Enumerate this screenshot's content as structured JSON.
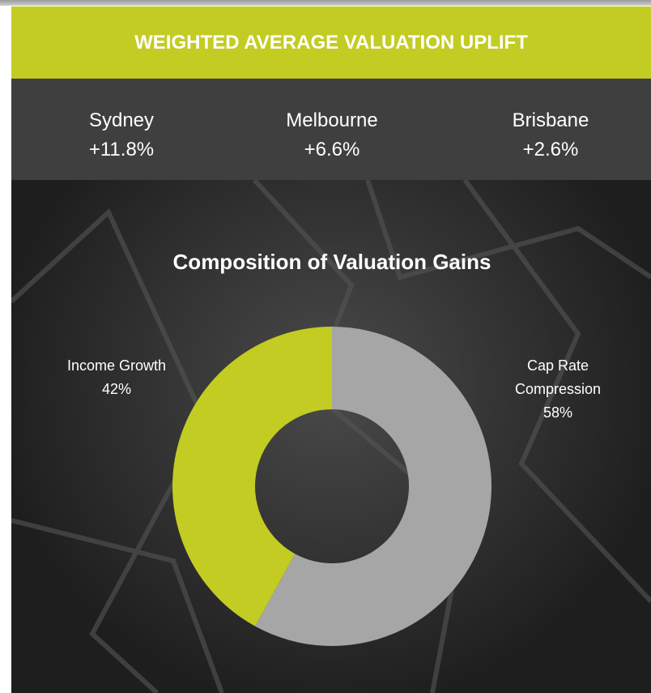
{
  "header": {
    "title": "WEIGHTED AVERAGE VALUATION UPLIFT"
  },
  "cities": [
    {
      "name": "Sydney",
      "value": "+11.8%"
    },
    {
      "name": "Melbourne",
      "value": "+6.6%"
    },
    {
      "name": "Brisbane",
      "value": "+2.6%"
    }
  ],
  "chart_data": {
    "type": "pie",
    "donut": true,
    "title": "Composition of Valuation Gains",
    "categories": [
      "Income Growth",
      "Cap Rate Compression"
    ],
    "values": [
      42,
      58
    ],
    "value_labels": [
      "42%",
      "58%"
    ],
    "colors": [
      "#c3cc22",
      "#a6a6a6"
    ]
  }
}
